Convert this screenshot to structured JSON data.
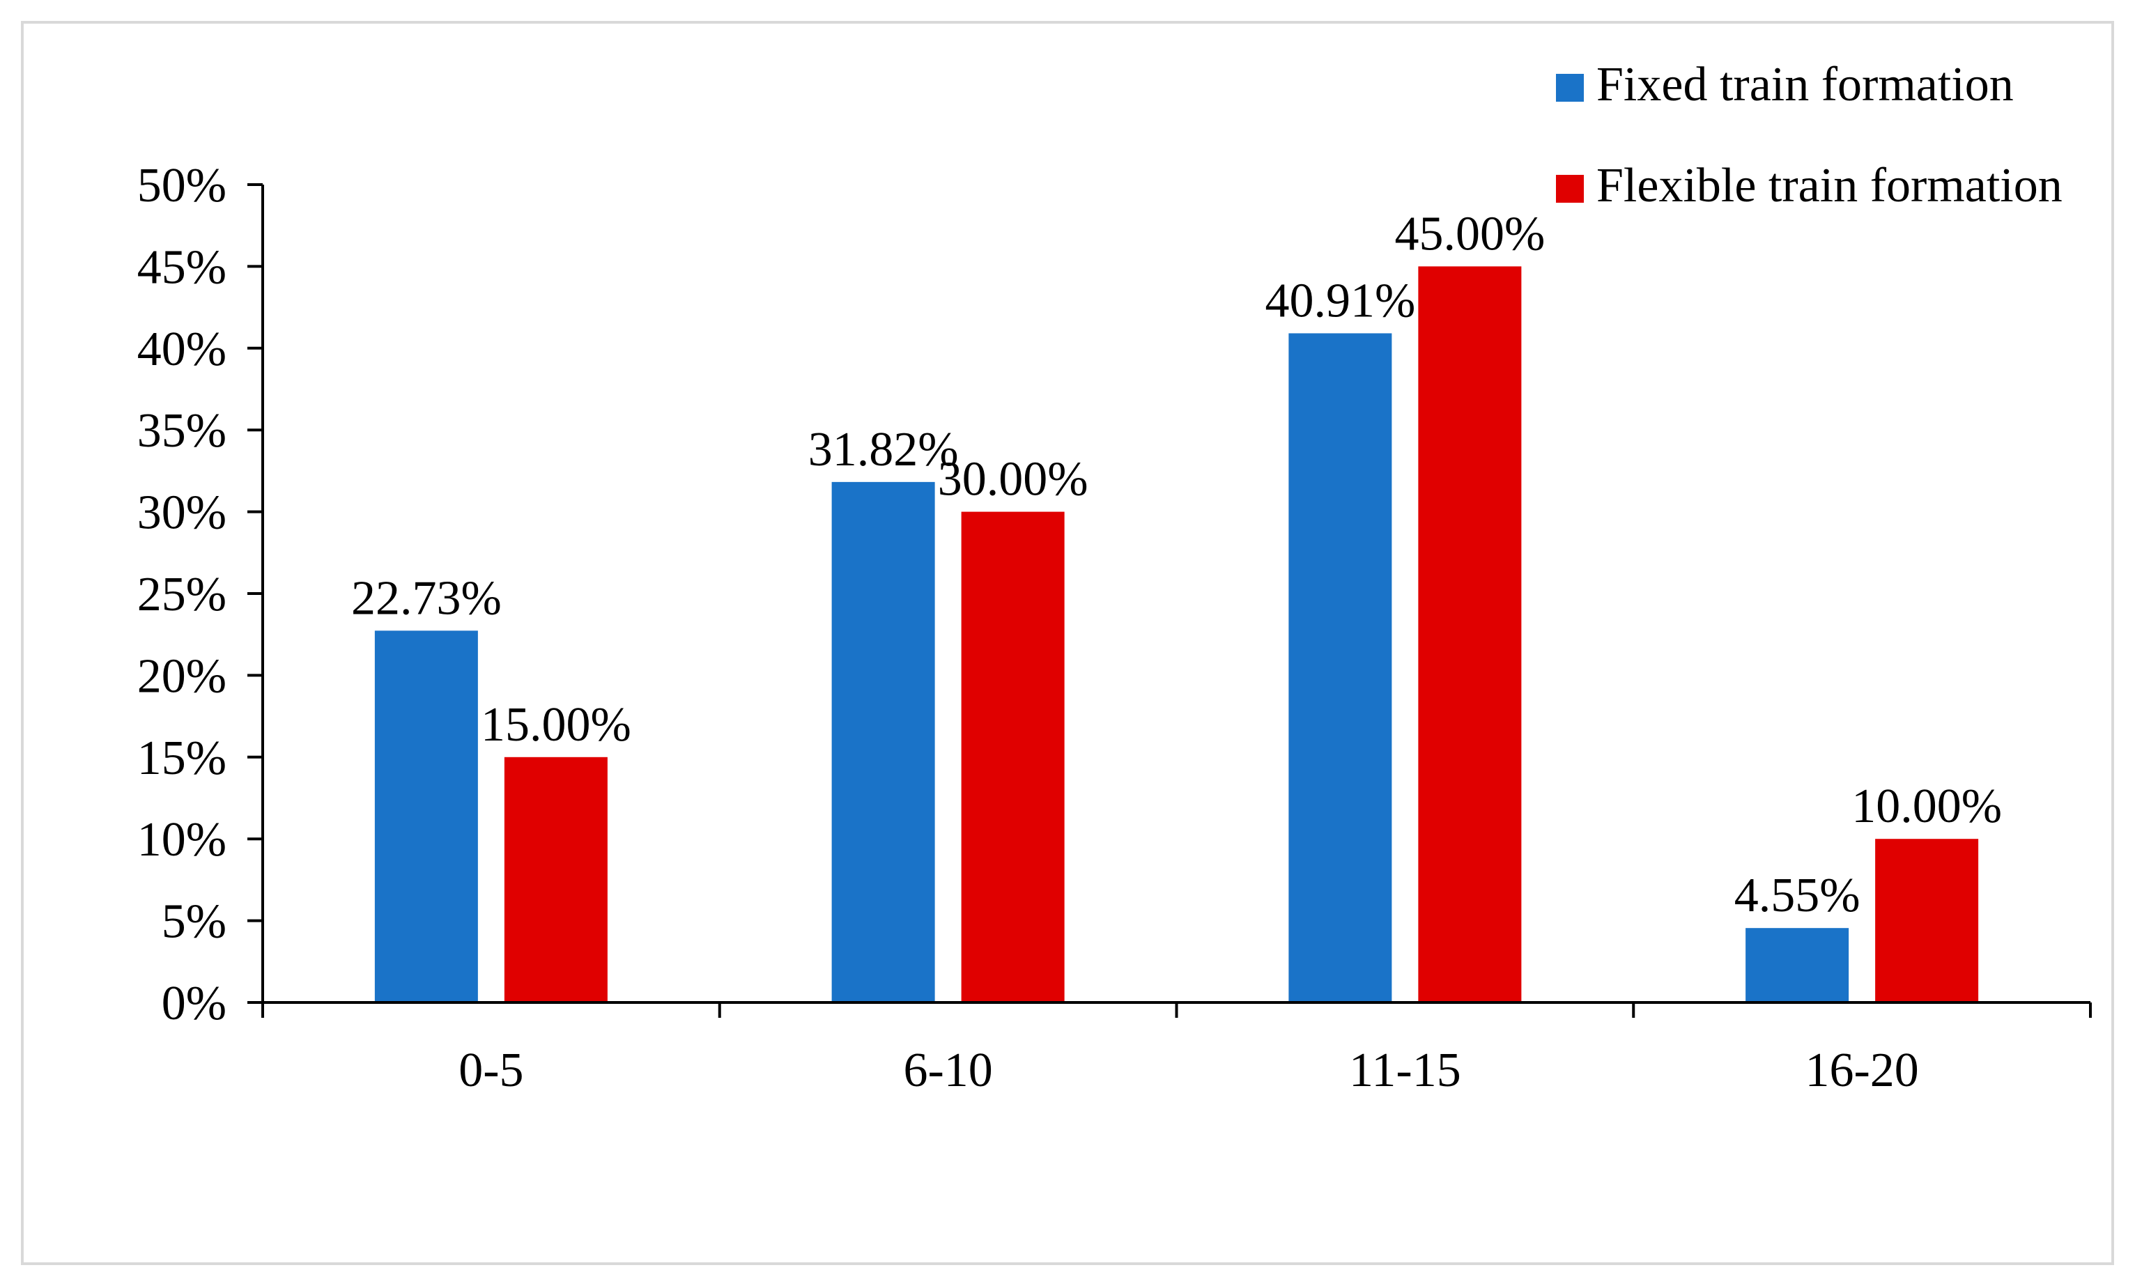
{
  "chart_data": {
    "type": "bar",
    "title": "",
    "xlabel": "",
    "ylabel": "",
    "categories": [
      "0-5",
      "6-10",
      "11-15",
      "16-20"
    ],
    "series": [
      {
        "name": "Fixed train formation",
        "color": "#1a73c8",
        "values": [
          22.73,
          31.82,
          40.91,
          4.55
        ],
        "labels": [
          "22.73%",
          "31.82%",
          "40.91%",
          "4.55%"
        ]
      },
      {
        "name": "Flexible train formation",
        "color": "#e00000",
        "values": [
          15.0,
          30.0,
          45.0,
          10.0
        ],
        "labels": [
          "15.00%",
          "30.00%",
          "45.00%",
          "10.00%"
        ]
      }
    ],
    "ylim": [
      0,
      50
    ],
    "yticks": [
      0,
      5,
      10,
      15,
      20,
      25,
      30,
      35,
      40,
      45,
      50
    ],
    "ytick_labels": [
      "0%",
      "5%",
      "10%",
      "15%",
      "20%",
      "25%",
      "30%",
      "35%",
      "40%",
      "45%",
      "50%"
    ],
    "grid": false,
    "legend_position": "top-right"
  }
}
